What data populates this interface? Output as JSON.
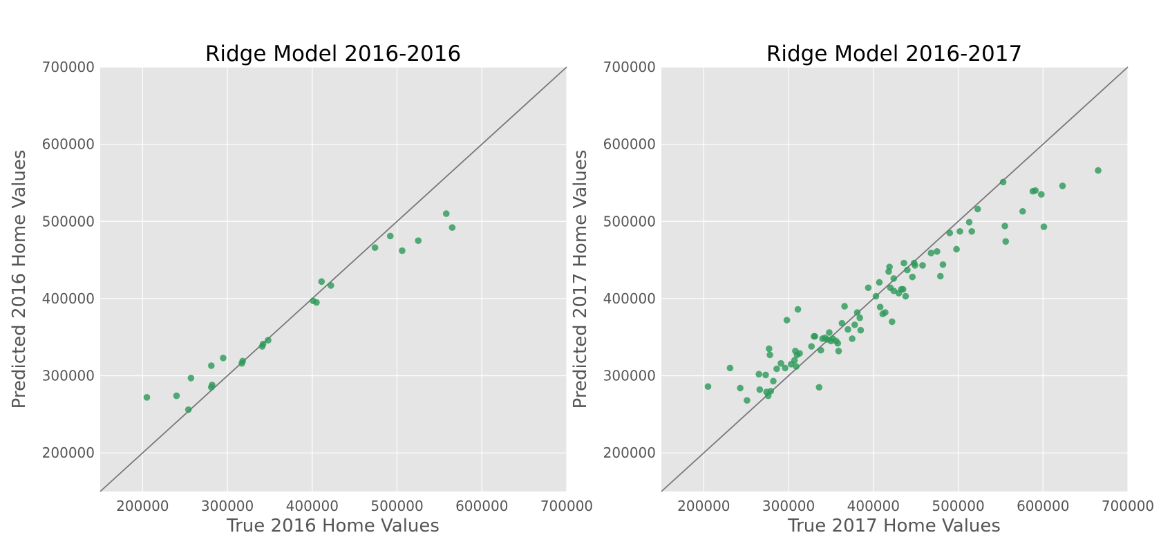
{
  "chart_data": [
    {
      "type": "scatter",
      "title": "Ridge Model 2016-2016",
      "xlabel": "True 2016 Home Values",
      "ylabel": "Predicted 2016 Home Values",
      "xlim": [
        150000,
        700000
      ],
      "ylim": [
        150000,
        700000
      ],
      "xticks": [
        "200000",
        "300000",
        "400000",
        "500000",
        "600000",
        "700000"
      ],
      "yticks": [
        "200000",
        "300000",
        "400000",
        "500000",
        "600000",
        "700000"
      ],
      "grid": true,
      "reference_line": "y = x",
      "marker_color": "#2e9a5a",
      "background_color": "#e5e5e5",
      "points": [
        [
          205000,
          272000
        ],
        [
          240000,
          274000
        ],
        [
          254000,
          256000
        ],
        [
          257000,
          297000
        ],
        [
          281000,
          313000
        ],
        [
          281000,
          285000
        ],
        [
          282000,
          288000
        ],
        [
          295000,
          323000
        ],
        [
          317000,
          316000
        ],
        [
          318000,
          319000
        ],
        [
          341000,
          338000
        ],
        [
          342000,
          341000
        ],
        [
          348000,
          346000
        ],
        [
          401000,
          397000
        ],
        [
          405000,
          395000
        ],
        [
          411000,
          422000
        ],
        [
          422000,
          417000
        ],
        [
          474000,
          466000
        ],
        [
          492000,
          481000
        ],
        [
          506000,
          462000
        ],
        [
          525000,
          475000
        ],
        [
          558000,
          510000
        ],
        [
          565000,
          492000
        ]
      ]
    },
    {
      "type": "scatter",
      "title": "Ridge Model 2016-2017",
      "xlabel": "True 2017 Home Values",
      "ylabel": "Predicted 2017 Home Values",
      "xlim": [
        150000,
        700000
      ],
      "ylim": [
        150000,
        700000
      ],
      "xticks": [
        "200000",
        "300000",
        "400000",
        "500000",
        "600000",
        "700000"
      ],
      "yticks": [
        "200000",
        "300000",
        "400000",
        "500000",
        "600000",
        "700000"
      ],
      "grid": true,
      "reference_line": "y = x",
      "marker_color": "#2e9a5a",
      "background_color": "#e5e5e5",
      "points": [
        [
          205000,
          286000
        ],
        [
          231000,
          310000
        ],
        [
          243000,
          284000
        ],
        [
          251000,
          268000
        ],
        [
          265000,
          302000
        ],
        [
          266000,
          282000
        ],
        [
          273000,
          301000
        ],
        [
          274000,
          279000
        ],
        [
          276000,
          274000
        ],
        [
          277000,
          335000
        ],
        [
          278000,
          327000
        ],
        [
          279000,
          280000
        ],
        [
          282000,
          293000
        ],
        [
          286000,
          309000
        ],
        [
          291000,
          316000
        ],
        [
          296000,
          310000
        ],
        [
          298000,
          372000
        ],
        [
          303000,
          315000
        ],
        [
          307000,
          320000
        ],
        [
          308000,
          332000
        ],
        [
          309000,
          312000
        ],
        [
          310000,
          327000
        ],
        [
          311000,
          386000
        ],
        [
          313000,
          329000
        ],
        [
          327000,
          338000
        ],
        [
          330000,
          351000
        ],
        [
          331000,
          351000
        ],
        [
          336000,
          285000
        ],
        [
          338000,
          333000
        ],
        [
          340000,
          348000
        ],
        [
          343000,
          349000
        ],
        [
          346000,
          347000
        ],
        [
          348000,
          356000
        ],
        [
          350000,
          345000
        ],
        [
          352000,
          348000
        ],
        [
          356000,
          345000
        ],
        [
          358000,
          342000
        ],
        [
          359000,
          332000
        ],
        [
          363000,
          368000
        ],
        [
          366000,
          390000
        ],
        [
          370000,
          360000
        ],
        [
          375000,
          348000
        ],
        [
          378000,
          366000
        ],
        [
          381000,
          382000
        ],
        [
          384000,
          375000
        ],
        [
          385000,
          359000
        ],
        [
          394000,
          414000
        ],
        [
          403000,
          403000
        ],
        [
          407000,
          421000
        ],
        [
          408000,
          389000
        ],
        [
          411000,
          380000
        ],
        [
          414000,
          382000
        ],
        [
          418000,
          435000
        ],
        [
          419000,
          441000
        ],
        [
          420000,
          414000
        ],
        [
          422000,
          370000
        ],
        [
          424000,
          426000
        ],
        [
          424000,
          410000
        ],
        [
          430000,
          407000
        ],
        [
          433000,
          412000
        ],
        [
          435000,
          412000
        ],
        [
          436000,
          446000
        ],
        [
          438000,
          403000
        ],
        [
          440000,
          437000
        ],
        [
          446000,
          428000
        ],
        [
          448000,
          446000
        ],
        [
          449000,
          443000
        ],
        [
          458000,
          443000
        ],
        [
          468000,
          459000
        ],
        [
          475000,
          461000
        ],
        [
          479000,
          429000
        ],
        [
          482000,
          444000
        ],
        [
          490000,
          485000
        ],
        [
          498000,
          464000
        ],
        [
          502000,
          487000
        ],
        [
          513000,
          499000
        ],
        [
          516000,
          487000
        ],
        [
          523000,
          516000
        ],
        [
          553000,
          551000
        ],
        [
          555000,
          494000
        ],
        [
          556000,
          474000
        ],
        [
          576000,
          513000
        ],
        [
          588000,
          539000
        ],
        [
          591000,
          540000
        ],
        [
          598000,
          535000
        ],
        [
          601000,
          493000
        ],
        [
          623000,
          546000
        ],
        [
          665000,
          566000
        ]
      ]
    }
  ]
}
